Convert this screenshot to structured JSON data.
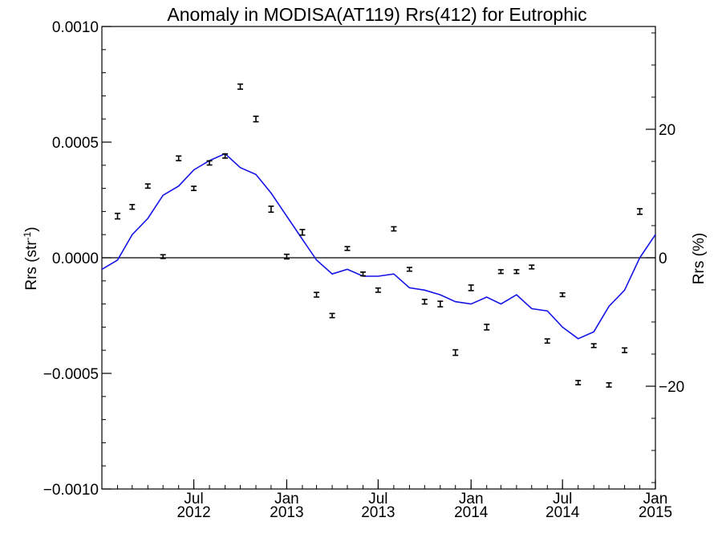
{
  "chart_data": {
    "type": "line",
    "title": "Anomaly in MODISA(AT119) Rrs(412) for Eutrophic",
    "ylabel_left": "Rrs (str",
    "ylabel_left_sup": "-1",
    "ylabel_left_end": ")",
    "ylabel_right": "Rrs (%)",
    "xlim": [
      "2012-01-01",
      "2015-01-01"
    ],
    "ylim": [
      -0.001,
      0.001
    ],
    "ylim_right": [
      -36,
      36
    ],
    "grid": false,
    "x_ticks": [
      {
        "date": "2012-07-01",
        "line1": "Jul",
        "line2": "2012"
      },
      {
        "date": "2013-01-01",
        "line1": "Jan",
        "line2": "2013"
      },
      {
        "date": "2013-07-01",
        "line1": "Jul",
        "line2": "2013"
      },
      {
        "date": "2014-01-01",
        "line1": "Jan",
        "line2": "2014"
      },
      {
        "date": "2014-07-01",
        "line1": "Jul",
        "line2": "2014"
      },
      {
        "date": "2015-01-01",
        "line1": "Jan",
        "line2": "2015"
      }
    ],
    "y_ticks_left": [
      {
        "value": 0.001,
        "label": "0.0010"
      },
      {
        "value": 0.0005,
        "label": "0.0005"
      },
      {
        "value": 0.0,
        "label": "0.0000"
      },
      {
        "value": -0.0005,
        "label": "−0.0005"
      },
      {
        "value": -0.001,
        "label": "−0.0010"
      }
    ],
    "y_ticks_right": [
      {
        "value": 20,
        "label": "20"
      },
      {
        "value": 0,
        "label": "0"
      },
      {
        "value": -20,
        "label": "−20"
      }
    ],
    "series": [
      {
        "kind": "points_with_error_bars",
        "color": "#000000",
        "points": [
          {
            "x": "2012-02-01",
            "y": 0.00018,
            "err": 1.2e-05
          },
          {
            "x": "2012-03-01",
            "y": 0.00022,
            "err": 1e-05
          },
          {
            "x": "2012-04-01",
            "y": 0.00031,
            "err": 9e-06
          },
          {
            "x": "2012-05-01",
            "y": 5e-06,
            "err": 8e-06
          },
          {
            "x": "2012-06-01",
            "y": 0.00043,
            "err": 1e-05
          },
          {
            "x": "2012-07-01",
            "y": 0.0003,
            "err": 9e-06
          },
          {
            "x": "2012-08-01",
            "y": 0.00041,
            "err": 9e-06
          },
          {
            "x": "2012-09-01",
            "y": 0.00044,
            "err": 9e-06
          },
          {
            "x": "2012-10-01",
            "y": 0.00074,
            "err": 1.1e-05
          },
          {
            "x": "2012-11-01",
            "y": 0.0006,
            "err": 1.2e-05
          },
          {
            "x": "2012-12-01",
            "y": 0.00021,
            "err": 1.3e-05
          },
          {
            "x": "2013-01-01",
            "y": 5e-06,
            "err": 1e-05
          },
          {
            "x": "2013-02-01",
            "y": 0.00011,
            "err": 1.2e-05
          },
          {
            "x": "2013-03-01",
            "y": -0.00016,
            "err": 1e-05
          },
          {
            "x": "2013-04-01",
            "y": -0.00025,
            "err": 9e-06
          },
          {
            "x": "2013-05-01",
            "y": 4e-05,
            "err": 8e-06
          },
          {
            "x": "2013-06-01",
            "y": -7e-05,
            "err": 8e-06
          },
          {
            "x": "2013-07-01",
            "y": -0.00014,
            "err": 9e-06
          },
          {
            "x": "2013-08-01",
            "y": 0.000125,
            "err": 9e-06
          },
          {
            "x": "2013-09-01",
            "y": -5e-05,
            "err": 8e-06
          },
          {
            "x": "2013-10-01",
            "y": -0.00019,
            "err": 1e-05
          },
          {
            "x": "2013-11-01",
            "y": -0.0002,
            "err": 1.2e-05
          },
          {
            "x": "2013-12-01",
            "y": -0.00041,
            "err": 1.2e-05
          },
          {
            "x": "2014-01-01",
            "y": -0.00013,
            "err": 1.2e-05
          },
          {
            "x": "2014-02-01",
            "y": -0.0003,
            "err": 1.2e-05
          },
          {
            "x": "2014-03-01",
            "y": -6e-05,
            "err": 8e-06
          },
          {
            "x": "2014-04-01",
            "y": -6e-05,
            "err": 8e-06
          },
          {
            "x": "2014-05-01",
            "y": -4e-05,
            "err": 8e-06
          },
          {
            "x": "2014-06-01",
            "y": -0.00036,
            "err": 9e-06
          },
          {
            "x": "2014-07-01",
            "y": -0.00016,
            "err": 8e-06
          },
          {
            "x": "2014-08-01",
            "y": -0.00054,
            "err": 9e-06
          },
          {
            "x": "2014-09-01",
            "y": -0.00038,
            "err": 8e-06
          },
          {
            "x": "2014-10-01",
            "y": -0.00055,
            "err": 9e-06
          },
          {
            "x": "2014-11-01",
            "y": -0.0004,
            "err": 1e-05
          },
          {
            "x": "2014-12-01",
            "y": 0.0002,
            "err": 1.2e-05
          }
        ]
      },
      {
        "kind": "line",
        "color": "#1414e6",
        "points": [
          {
            "x": "2012-01-01",
            "y": -5e-05
          },
          {
            "x": "2012-02-01",
            "y": -1e-05
          },
          {
            "x": "2012-03-01",
            "y": 0.0001
          },
          {
            "x": "2012-04-01",
            "y": 0.00017
          },
          {
            "x": "2012-05-01",
            "y": 0.00027
          },
          {
            "x": "2012-06-01",
            "y": 0.00031
          },
          {
            "x": "2012-07-01",
            "y": 0.00038
          },
          {
            "x": "2012-08-01",
            "y": 0.00042
          },
          {
            "x": "2012-09-01",
            "y": 0.00045
          },
          {
            "x": "2012-10-01",
            "y": 0.00039
          },
          {
            "x": "2012-11-01",
            "y": 0.00036
          },
          {
            "x": "2012-12-01",
            "y": 0.00028
          },
          {
            "x": "2013-01-01",
            "y": 0.00018
          },
          {
            "x": "2013-02-01",
            "y": 8e-05
          },
          {
            "x": "2013-03-01",
            "y": -1e-05
          },
          {
            "x": "2013-04-01",
            "y": -7e-05
          },
          {
            "x": "2013-05-01",
            "y": -5e-05
          },
          {
            "x": "2013-06-01",
            "y": -8e-05
          },
          {
            "x": "2013-07-01",
            "y": -8e-05
          },
          {
            "x": "2013-08-01",
            "y": -7e-05
          },
          {
            "x": "2013-09-01",
            "y": -0.00013
          },
          {
            "x": "2013-10-01",
            "y": -0.00014
          },
          {
            "x": "2013-11-01",
            "y": -0.00016
          },
          {
            "x": "2013-12-01",
            "y": -0.00019
          },
          {
            "x": "2014-01-01",
            "y": -0.0002
          },
          {
            "x": "2014-02-01",
            "y": -0.00017
          },
          {
            "x": "2014-03-01",
            "y": -0.0002
          },
          {
            "x": "2014-04-01",
            "y": -0.00016
          },
          {
            "x": "2014-05-01",
            "y": -0.00022
          },
          {
            "x": "2014-06-01",
            "y": -0.00023
          },
          {
            "x": "2014-07-01",
            "y": -0.0003
          },
          {
            "x": "2014-08-01",
            "y": -0.00035
          },
          {
            "x": "2014-09-01",
            "y": -0.00032
          },
          {
            "x": "2014-10-01",
            "y": -0.00021
          },
          {
            "x": "2014-11-01",
            "y": -0.00014
          },
          {
            "x": "2014-12-01",
            "y": 0.0
          },
          {
            "x": "2015-01-01",
            "y": 0.0001
          }
        ]
      }
    ],
    "reference_line": {
      "y": 0.0,
      "color": "#000000"
    }
  }
}
